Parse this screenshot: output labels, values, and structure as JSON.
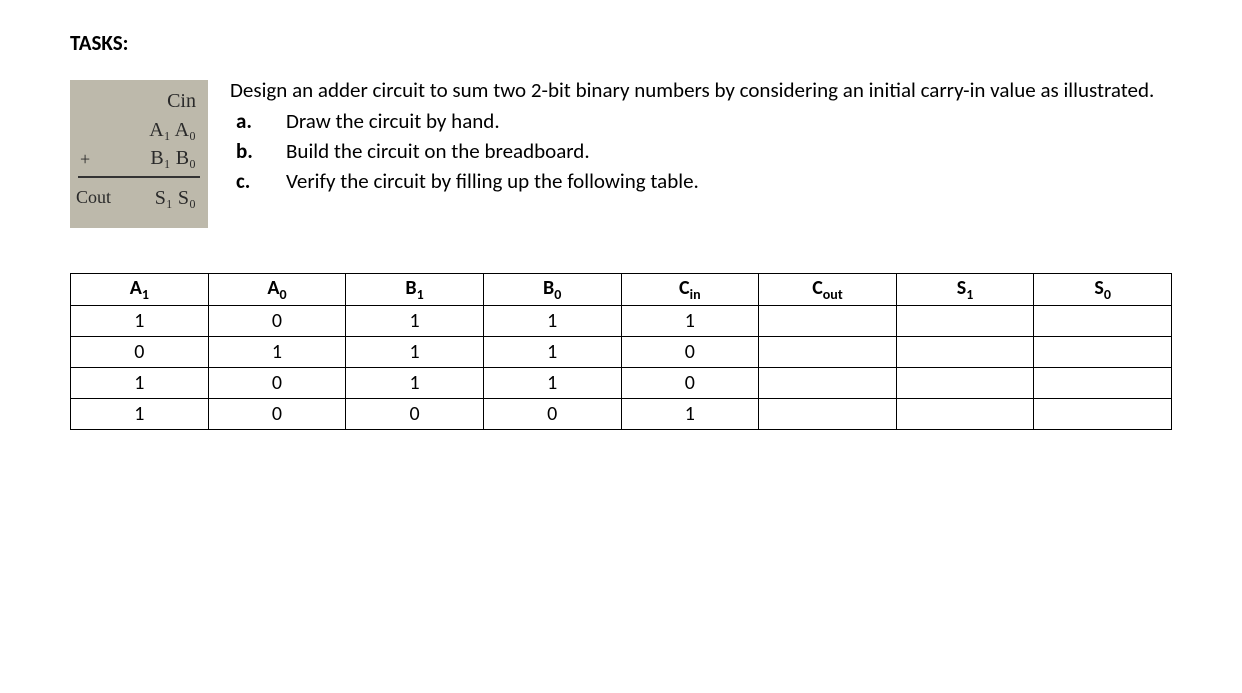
{
  "heading": "TASKS:",
  "handwriting": {
    "cin": "Cin",
    "a": "A₁  A₀",
    "b": "B₁  B₀",
    "plus": "+",
    "cout": "Cout",
    "s": "S₁  S₀"
  },
  "intro": "Design an adder circuit to sum two 2-bit binary numbers by considering an initial carry-in value as illustrated.",
  "subtasks": {
    "a_label": "a.",
    "a_text": "Draw the circuit by hand.",
    "b_label": "b.",
    "b_text": "Build the circuit on the breadboard.",
    "c_label": "c.",
    "c_text": "Verify the circuit by filling up the following table."
  },
  "table": {
    "headers": {
      "a1_base": "A",
      "a1_sub": "1",
      "a0_base": "A",
      "a0_sub": "0",
      "b1_base": "B",
      "b1_sub": "1",
      "b0_base": "B",
      "b0_sub": "0",
      "cin_base": "C",
      "cin_sub": "in",
      "cout_base": "C",
      "cout_sub": "out",
      "s1_base": "S",
      "s1_sub": "1",
      "s0_base": "S",
      "s0_sub": "0"
    },
    "rows": [
      {
        "a1": "1",
        "a0": "0",
        "b1": "1",
        "b0": "1",
        "cin": "1",
        "cout": "",
        "s1": "",
        "s0": ""
      },
      {
        "a1": "0",
        "a0": "1",
        "b1": "1",
        "b0": "1",
        "cin": "0",
        "cout": "",
        "s1": "",
        "s0": ""
      },
      {
        "a1": "1",
        "a0": "0",
        "b1": "1",
        "b0": "1",
        "cin": "0",
        "cout": "",
        "s1": "",
        "s0": ""
      },
      {
        "a1": "1",
        "a0": "0",
        "b1": "0",
        "b0": "0",
        "cin": "1",
        "cout": "",
        "s1": "",
        "s0": ""
      }
    ]
  }
}
